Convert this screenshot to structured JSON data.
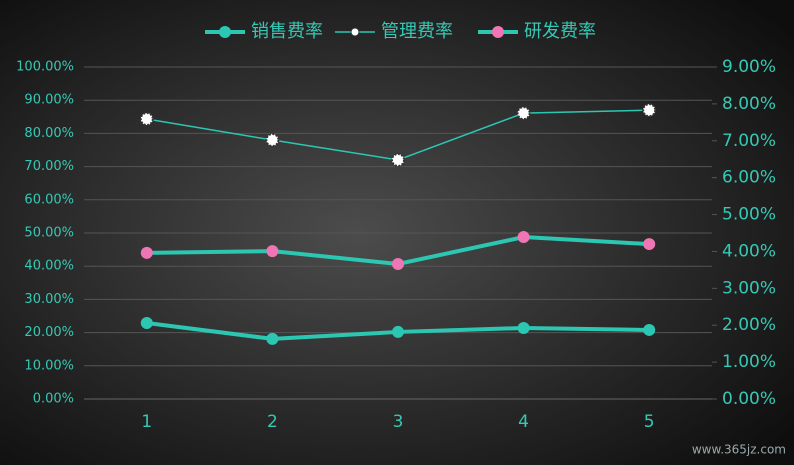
{
  "chart_data": {
    "type": "line",
    "categories": [
      "1",
      "2",
      "3",
      "4",
      "5"
    ],
    "series": [
      {
        "name": "销售费率",
        "color": "#2cc7b3",
        "marker_color": "#2cc7b3",
        "axis": "y",
        "values": [
          22.9,
          18.1,
          20.2,
          21.4,
          20.8
        ]
      },
      {
        "name": "管理费率",
        "color": "#2cc7b3",
        "marker_color": "#ffffff",
        "axis": "y2",
        "values": [
          7.59,
          7.02,
          6.48,
          7.75,
          7.83
        ]
      },
      {
        "name": "研发费率",
        "color": "#2cc7b3",
        "marker_color": "#f075b4",
        "axis": "y2",
        "values": [
          3.96,
          4.01,
          3.66,
          4.39,
          4.2
        ]
      }
    ],
    "ylim": [
      0,
      100
    ],
    "yticks": [
      {
        "value": 0,
        "label": "0.00%"
      },
      {
        "value": 10,
        "label": "10.00%"
      },
      {
        "value": 20,
        "label": "20.00%"
      },
      {
        "value": 30,
        "label": "30.00%"
      },
      {
        "value": 40,
        "label": "40.00%"
      },
      {
        "value": 50,
        "label": "50.00%"
      },
      {
        "value": 60,
        "label": "60.00%"
      },
      {
        "value": 70,
        "label": "70.00%"
      },
      {
        "value": 80,
        "label": "80.00%"
      },
      {
        "value": 90,
        "label": "90.00%"
      },
      {
        "value": 100,
        "label": "100.00%"
      }
    ],
    "y2lim": [
      0,
      9
    ],
    "y2ticks": [
      {
        "value": 0,
        "label": "0.00%"
      },
      {
        "value": 1,
        "label": "1.00%"
      },
      {
        "value": 2,
        "label": "2.00%"
      },
      {
        "value": 3,
        "label": "3.00%"
      },
      {
        "value": 4,
        "label": "4.00%"
      },
      {
        "value": 5,
        "label": "5.00%"
      },
      {
        "value": 6,
        "label": "6.00%"
      },
      {
        "value": 7,
        "label": "7.00%"
      },
      {
        "value": 8,
        "label": "8.00%"
      },
      {
        "value": 9,
        "label": "9.00%"
      }
    ],
    "grid": true,
    "legend": "top",
    "watermark": "www.365jz.com"
  }
}
